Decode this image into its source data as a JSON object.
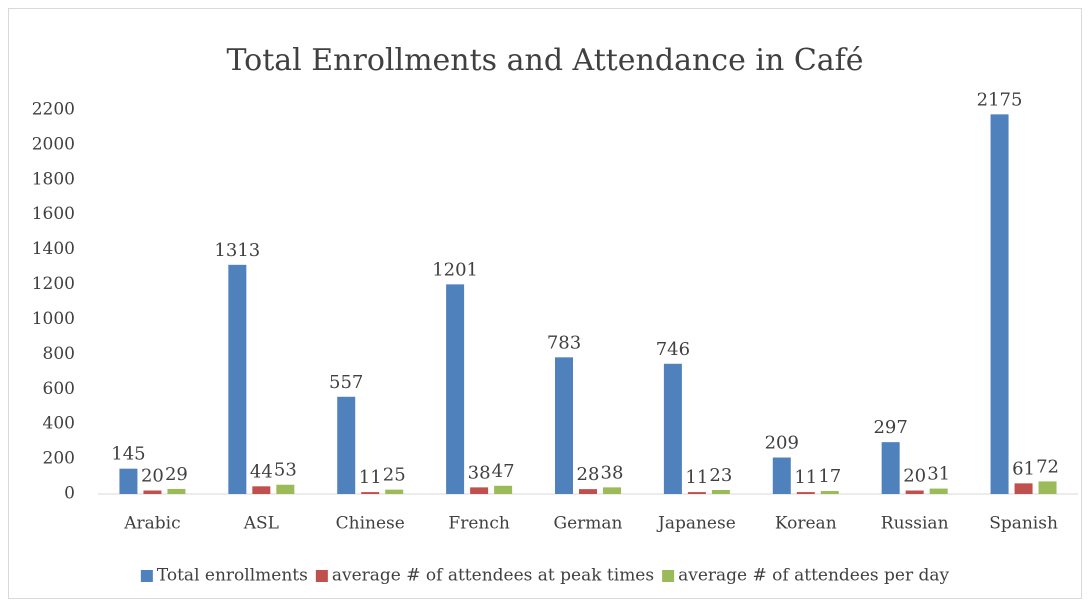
{
  "chart_data": {
    "type": "bar",
    "title": "Total Enrollments and Attendance in Café",
    "categories": [
      "Arabic",
      "ASL",
      "Chinese",
      "French",
      "German",
      "Japanese",
      "Korean",
      "Russian",
      "Spanish"
    ],
    "series": [
      {
        "name": "Total enrollments",
        "color": "#4f81bd",
        "values": [
          145,
          1313,
          557,
          1201,
          783,
          746,
          209,
          297,
          2175
        ]
      },
      {
        "name": "average # of attendees at peak times",
        "color": "#c0504d",
        "values": [
          20,
          44,
          11,
          38,
          28,
          11,
          11,
          20,
          61
        ]
      },
      {
        "name": "average # of attendees per day",
        "color": "#9bbb59",
        "values": [
          29,
          53,
          25,
          47,
          38,
          23,
          17,
          31,
          72
        ]
      }
    ],
    "ylim": [
      0,
      2200
    ],
    "yticks": [
      0,
      200,
      400,
      600,
      800,
      1000,
      1200,
      1400,
      1600,
      1800,
      2000,
      2200
    ],
    "grid": false,
    "legend": "bottom"
  }
}
